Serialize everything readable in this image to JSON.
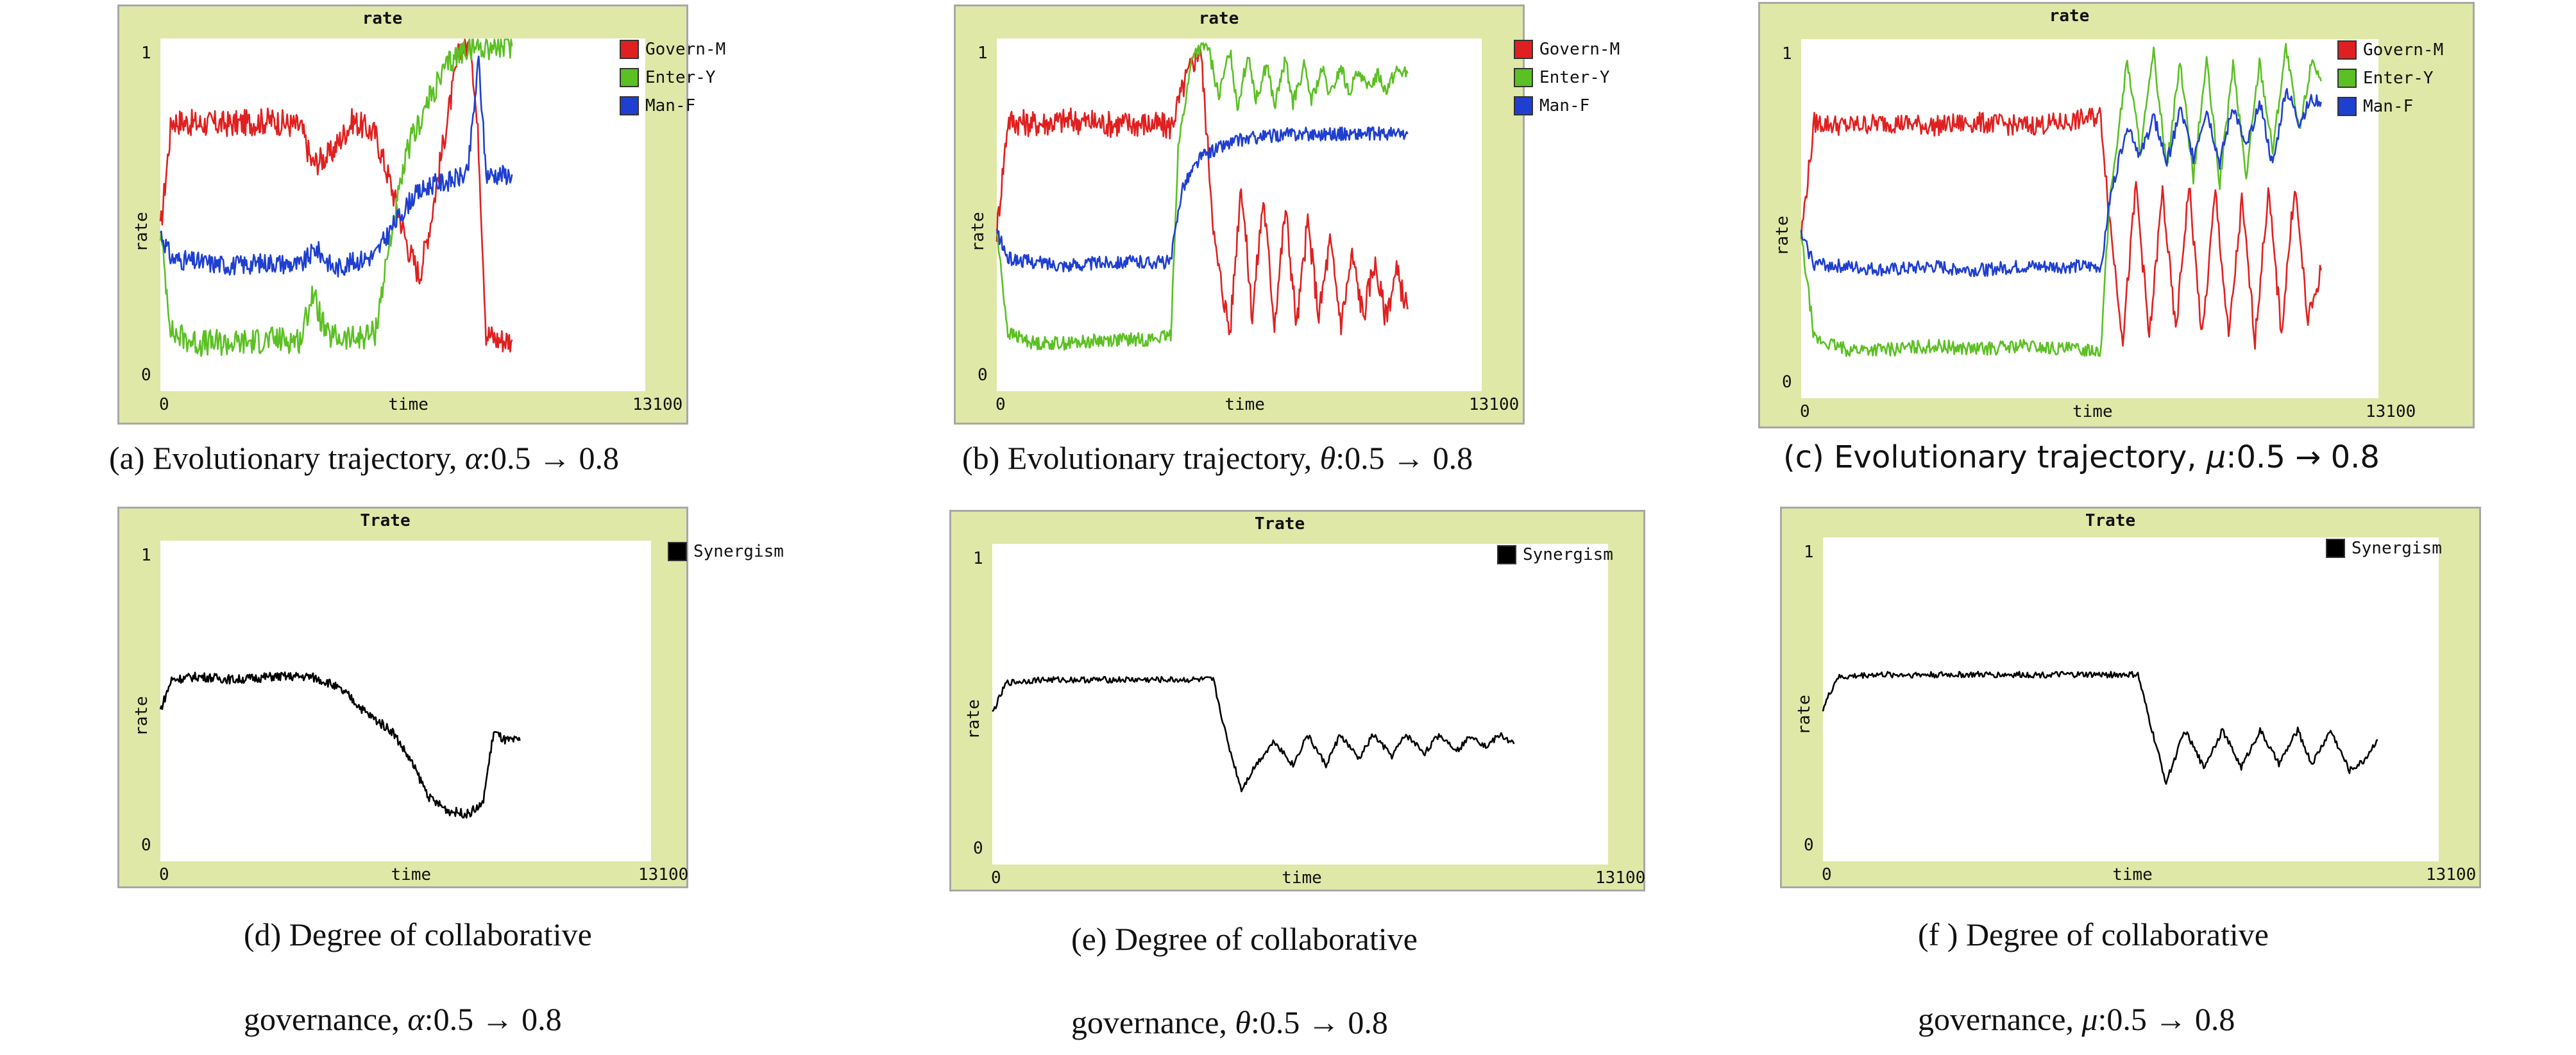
{
  "colors": {
    "govern": "#e02020",
    "enter": "#5bc023",
    "man": "#1f3fd0",
    "synergism": "#000000",
    "panel_bg": "#dfe8a6"
  },
  "chart_data": [
    {
      "id": "a",
      "type": "line",
      "title": "rate",
      "xlabel": "time",
      "ylabel": "rate",
      "xticks": [
        "0",
        "13100"
      ],
      "yticks": [
        "0",
        "1"
      ],
      "xlim": [
        0,
        13100
      ],
      "ylim": [
        0,
        1
      ],
      "caption": {
        "text": "(a) Evolutionary trajectory, ",
        "var": "α",
        "range": ":0.5 → 0.8"
      },
      "series": [
        {
          "name": "Govern-M",
          "color": "#e02020",
          "x": [
            0,
            300,
            1000,
            2000,
            3000,
            3800,
            4100,
            4600,
            5200,
            5800,
            6200,
            6700,
            7000,
            7300,
            7700,
            8100,
            8400,
            8600,
            8800,
            9100,
            9500
          ],
          "y": [
            0.45,
            0.78,
            0.77,
            0.77,
            0.78,
            0.76,
            0.65,
            0.68,
            0.78,
            0.74,
            0.6,
            0.4,
            0.32,
            0.48,
            0.75,
            1.0,
            1.0,
            0.7,
            0.15,
            0.13,
            0.13
          ],
          "noise": 0.04
        },
        {
          "name": "Enter-Y",
          "color": "#5bc023",
          "x": [
            0,
            300,
            1000,
            2000,
            3000,
            3800,
            4100,
            4500,
            5200,
            5800,
            6200,
            6700,
            7300,
            7800,
            8300,
            8700,
            9500
          ],
          "y": [
            0.45,
            0.15,
            0.12,
            0.12,
            0.13,
            0.13,
            0.27,
            0.14,
            0.13,
            0.15,
            0.42,
            0.7,
            0.85,
            0.95,
            1.0,
            1.0,
            1.0
          ],
          "noise": 0.04
        },
        {
          "name": "Man-F",
          "color": "#1f3fd0",
          "x": [
            0,
            300,
            1000,
            2000,
            3000,
            3800,
            4200,
            4700,
            5200,
            5800,
            6300,
            6800,
            7300,
            7800,
            8300,
            8600,
            8800,
            9100,
            9500
          ],
          "y": [
            0.45,
            0.37,
            0.36,
            0.35,
            0.36,
            0.35,
            0.4,
            0.34,
            0.36,
            0.38,
            0.47,
            0.55,
            0.59,
            0.6,
            0.62,
            0.96,
            0.62,
            0.62,
            0.62
          ],
          "noise": 0.03
        }
      ]
    },
    {
      "id": "b",
      "type": "line",
      "title": "rate",
      "xlabel": "time",
      "ylabel": "rate",
      "xticks": [
        "0",
        "13100"
      ],
      "yticks": [
        "0",
        "1"
      ],
      "xlim": [
        0,
        13100
      ],
      "ylim": [
        0,
        1
      ],
      "caption": {
        "text": "(b)  Evolutionary trajectory, ",
        "var": "θ",
        "range": ":0.5 → 0.8"
      },
      "series": [
        {
          "name": "Govern-M",
          "color": "#e02020",
          "x": [
            0,
            300,
            1000,
            2000,
            3000,
            4000,
            4700,
            5100,
            5500,
            5900,
            6300,
            6600,
            6900,
            7200,
            7500,
            7800,
            8100,
            8400,
            8700,
            9000,
            9300,
            9600,
            9900,
            10200,
            10500,
            10800,
            11100
          ],
          "y": [
            0.45,
            0.78,
            0.77,
            0.78,
            0.77,
            0.77,
            0.76,
            0.9,
            1.0,
            0.4,
            0.15,
            0.6,
            0.2,
            0.55,
            0.18,
            0.52,
            0.17,
            0.48,
            0.2,
            0.42,
            0.18,
            0.38,
            0.2,
            0.36,
            0.2,
            0.33,
            0.22
          ],
          "noise": 0.04
        },
        {
          "name": "Enter-Y",
          "color": "#5bc023",
          "x": [
            0,
            300,
            1000,
            2000,
            3000,
            4000,
            4700,
            4900,
            5300,
            5700,
            6000,
            6300,
            6500,
            6800,
            7000,
            7300,
            7500,
            7800,
            8000,
            8300,
            8500,
            8800,
            9000,
            9300,
            9500,
            9800,
            10000,
            10300,
            10500,
            10800,
            11100
          ],
          "y": [
            0.45,
            0.15,
            0.12,
            0.12,
            0.13,
            0.13,
            0.14,
            0.7,
            0.98,
            1.0,
            0.85,
            0.99,
            0.82,
            0.98,
            0.84,
            0.95,
            0.82,
            0.96,
            0.83,
            0.94,
            0.84,
            0.93,
            0.85,
            0.94,
            0.86,
            0.93,
            0.87,
            0.92,
            0.87,
            0.93,
            0.92
          ],
          "noise": 0.02
        },
        {
          "name": "Man-F",
          "color": "#1f3fd0",
          "x": [
            0,
            300,
            1000,
            2000,
            3000,
            4000,
            4700,
            5000,
            5500,
            6000,
            6500,
            7000,
            8000,
            9000,
            10000,
            11100
          ],
          "y": [
            0.45,
            0.37,
            0.36,
            0.35,
            0.36,
            0.36,
            0.36,
            0.58,
            0.67,
            0.7,
            0.72,
            0.73,
            0.74,
            0.74,
            0.74,
            0.74
          ],
          "noise": 0.02
        }
      ]
    },
    {
      "id": "c",
      "type": "line",
      "title": "rate",
      "xlabel": "time",
      "ylabel": "rate",
      "xticks": [
        "0",
        "13100"
      ],
      "yticks": [
        "0",
        "1"
      ],
      "xlim": [
        0,
        13100
      ],
      "ylim": [
        0,
        1
      ],
      "caption": {
        "text": "(c) Evolutionary trajectory,  ",
        "var": "μ",
        "range": ":0.5 → 0.8"
      },
      "series": [
        {
          "name": "Govern-M",
          "color": "#e02020",
          "x": [
            0,
            300,
            1000,
            2000,
            3000,
            4000,
            5000,
            6000,
            6800,
            7000,
            7300,
            7600,
            7900,
            8200,
            8500,
            8800,
            9100,
            9400,
            9700,
            10000,
            10300,
            10600,
            10900,
            11200,
            11500,
            11800
          ],
          "y": [
            0.45,
            0.78,
            0.77,
            0.78,
            0.77,
            0.78,
            0.77,
            0.78,
            0.8,
            0.5,
            0.15,
            0.6,
            0.15,
            0.58,
            0.17,
            0.6,
            0.15,
            0.58,
            0.15,
            0.55,
            0.15,
            0.58,
            0.17,
            0.6,
            0.2,
            0.35
          ],
          "noise": 0.03
        },
        {
          "name": "Enter-Y",
          "color": "#5bc023",
          "x": [
            0,
            300,
            1000,
            2000,
            3000,
            4000,
            5000,
            6000,
            6800,
            7000,
            7400,
            7700,
            8000,
            8300,
            8600,
            8900,
            9200,
            9500,
            9800,
            10100,
            10400,
            10700,
            11000,
            11300,
            11600,
            11800
          ],
          "y": [
            0.45,
            0.15,
            0.12,
            0.12,
            0.13,
            0.12,
            0.13,
            0.12,
            0.12,
            0.55,
            0.96,
            0.7,
            0.98,
            0.65,
            0.96,
            0.62,
            0.96,
            0.6,
            0.95,
            0.62,
            0.96,
            0.7,
            1.0,
            0.75,
            0.97,
            0.9
          ],
          "noise": 0.02
        },
        {
          "name": "Man-F",
          "color": "#1f3fd0",
          "x": [
            0,
            300,
            1000,
            2000,
            3000,
            4000,
            5000,
            6000,
            6800,
            7000,
            7400,
            7700,
            8000,
            8300,
            8600,
            8900,
            9200,
            9500,
            9800,
            10100,
            10400,
            10700,
            11000,
            11300,
            11600,
            11800
          ],
          "y": [
            0.45,
            0.37,
            0.36,
            0.35,
            0.36,
            0.35,
            0.36,
            0.36,
            0.36,
            0.55,
            0.78,
            0.68,
            0.8,
            0.66,
            0.82,
            0.68,
            0.82,
            0.66,
            0.83,
            0.7,
            0.85,
            0.65,
            0.88,
            0.78,
            0.85,
            0.84
          ],
          "noise": 0.02
        }
      ]
    },
    {
      "id": "d",
      "type": "line",
      "title": "Trate",
      "xlabel": "time",
      "ylabel": "rate",
      "xticks": [
        "0",
        "13100"
      ],
      "yticks": [
        "0",
        "1"
      ],
      "xlim": [
        0,
        13100
      ],
      "ylim": [
        0,
        1
      ],
      "caption": {
        "line1": "(d)  Degree of collaborative",
        "text": "governance, ",
        "var": "α",
        "range": ":0.5 → 0.8"
      },
      "series": [
        {
          "name": "Synergism",
          "color": "#000000",
          "x": [
            0,
            300,
            1000,
            2000,
            3000,
            4000,
            4500,
            5000,
            5500,
            6200,
            6700,
            7200,
            7700,
            8200,
            8600,
            8900,
            9200,
            9600
          ],
          "y": [
            0.47,
            0.57,
            0.58,
            0.57,
            0.58,
            0.58,
            0.56,
            0.52,
            0.46,
            0.4,
            0.3,
            0.18,
            0.14,
            0.13,
            0.16,
            0.4,
            0.37,
            0.37
          ],
          "noise": 0.015
        }
      ]
    },
    {
      "id": "e",
      "type": "line",
      "title": "Trate",
      "xlabel": "time",
      "ylabel": "rate",
      "xticks": [
        "0",
        "13100"
      ],
      "yticks": [
        "0",
        "1"
      ],
      "xlim": [
        0,
        13100
      ],
      "ylim": [
        0,
        1
      ],
      "caption": {
        "line1": "(e)  Degree of collaborative",
        "text": "governance, ",
        "var": "θ",
        "range": ":0.5 → 0.8"
      },
      "series": [
        {
          "name": "Synergism",
          "color": "#000000",
          "x": [
            0,
            300,
            1000,
            2000,
            3000,
            4000,
            4700,
            5000,
            5300,
            5600,
            6000,
            6400,
            6700,
            7100,
            7400,
            7800,
            8100,
            8500,
            8800,
            9200,
            9500,
            9900,
            10200,
            10500,
            10800,
            11100
          ],
          "y": [
            0.47,
            0.57,
            0.58,
            0.58,
            0.58,
            0.58,
            0.58,
            0.38,
            0.22,
            0.3,
            0.38,
            0.3,
            0.4,
            0.3,
            0.4,
            0.32,
            0.4,
            0.33,
            0.4,
            0.34,
            0.4,
            0.35,
            0.4,
            0.36,
            0.4,
            0.37
          ],
          "noise": 0.01
        }
      ]
    },
    {
      "id": "f",
      "type": "line",
      "title": "Trate",
      "xlabel": "time",
      "ylabel": "rate",
      "xticks": [
        "0",
        "13100"
      ],
      "yticks": [
        "0",
        "1"
      ],
      "xlim": [
        0,
        13100
      ],
      "ylim": [
        0,
        1
      ],
      "caption": {
        "line1": "(f ) Degree of collaborative",
        "text": "governance, ",
        "var": "μ",
        "range": ":0.5 → 0.8"
      },
      "series": [
        {
          "name": "Synergism",
          "color": "#000000",
          "x": [
            0,
            300,
            1000,
            2000,
            3000,
            4000,
            5000,
            6000,
            6700,
            7000,
            7300,
            7700,
            8100,
            8500,
            8900,
            9300,
            9700,
            10100,
            10400,
            10800,
            11200,
            11500,
            11800
          ],
          "y": [
            0.47,
            0.57,
            0.58,
            0.58,
            0.58,
            0.58,
            0.58,
            0.58,
            0.58,
            0.4,
            0.23,
            0.4,
            0.28,
            0.4,
            0.28,
            0.4,
            0.29,
            0.4,
            0.29,
            0.4,
            0.27,
            0.3,
            0.37
          ],
          "noise": 0.01
        }
      ]
    }
  ]
}
